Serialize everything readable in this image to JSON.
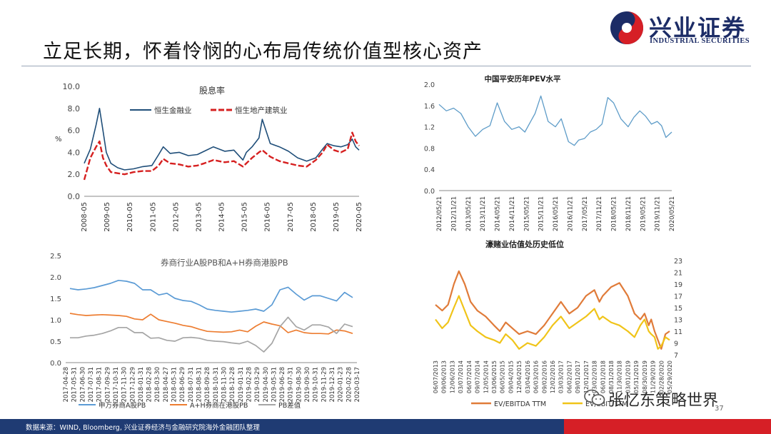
{
  "slide_title": "立足长期，怀着怜悯的心布局传统价值型核心资产",
  "brand": {
    "name_cn": "兴业证券",
    "name_en": "INDUSTRIAL SECURITIES",
    "colors": {
      "navy": "#1c2c66",
      "red": "#d61f26"
    }
  },
  "footer": {
    "source": "数据来源：WIND, Bloomberg, 兴业证券经济与金融研究院海外金融团队整理"
  },
  "watermark": {
    "text": "张忆东策略世界",
    "page": "37"
  },
  "chart_data": [
    {
      "id": "dividend",
      "type": "line",
      "title": "股息率",
      "ylabel": "%",
      "ylim": [
        0,
        10
      ],
      "yticks": [
        "0.0",
        "2.0",
        "4.0",
        "6.0",
        "8.0",
        "10.0"
      ],
      "xticks": [
        "2008-05",
        "2009-05",
        "2010-05",
        "2011-05",
        "2012-05",
        "2013-05",
        "2014-05",
        "2015-05",
        "2016-05",
        "2017-05",
        "2018-05",
        "2019-05",
        "2020-05"
      ],
      "x": [
        2008.33,
        2008.6,
        2008.85,
        2009.0,
        2009.15,
        2009.3,
        2009.5,
        2009.8,
        2010.1,
        2010.5,
        2010.9,
        2011.3,
        2011.6,
        2011.8,
        2012.1,
        2012.5,
        2012.9,
        2013.3,
        2013.6,
        2014.0,
        2014.5,
        2014.9,
        2015.3,
        2015.45,
        2015.7,
        2016.0,
        2016.15,
        2016.5,
        2016.9,
        2017.3,
        2017.7,
        2018.1,
        2018.5,
        2018.8,
        2019.0,
        2019.3,
        2019.6,
        2019.9,
        2020.1,
        2020.25,
        2020.4
      ],
      "series": [
        {
          "name": "恒生金融业",
          "color": "#1f4e79",
          "dash": "solid",
          "values": [
            3.0,
            4.3,
            6.5,
            8.0,
            6.0,
            4.0,
            3.0,
            2.6,
            2.4,
            2.5,
            2.7,
            2.8,
            3.8,
            4.5,
            3.9,
            4.0,
            3.7,
            3.8,
            4.1,
            4.5,
            4.1,
            4.2,
            3.3,
            4.0,
            4.5,
            5.3,
            7.0,
            4.8,
            4.5,
            4.1,
            3.5,
            3.2,
            3.5,
            4.3,
            4.8,
            4.6,
            4.5,
            4.7,
            5.2,
            4.5,
            4.2
          ]
        },
        {
          "name": "恒生地产建筑业",
          "color": "#d62020",
          "dash": "8 3",
          "values": [
            1.5,
            3.5,
            4.5,
            5.0,
            3.5,
            2.8,
            2.2,
            2.1,
            2.0,
            2.2,
            2.3,
            2.3,
            2.8,
            3.4,
            3.0,
            2.9,
            2.7,
            2.8,
            3.0,
            3.3,
            3.1,
            3.2,
            2.7,
            3.0,
            3.5,
            4.0,
            4.2,
            3.6,
            3.2,
            3.0,
            2.8,
            2.7,
            3.3,
            4.0,
            4.7,
            4.2,
            4.0,
            4.3,
            5.8,
            5.0,
            4.6
          ]
        }
      ]
    },
    {
      "id": "pingan",
      "type": "line",
      "title": "中国平安历年PEV水平",
      "ylim": [
        0,
        2
      ],
      "yticks": [
        "0.0",
        "0.4",
        "0.8",
        "1.2",
        "1.6",
        "2.0"
      ],
      "xticks": [
        "2012/05/21",
        "2012/11/21",
        "2013/05/21",
        "2013/11/21",
        "2014/05/21",
        "2014/11/21",
        "2015/05/21",
        "2015/11/21",
        "2016/05/21",
        "2016/11/21",
        "2017/05/21",
        "2017/11/21",
        "2018/05/21",
        "2018/11/21",
        "2019/05/21",
        "2019/11/21",
        "2020/05/21"
      ],
      "x": [
        0,
        0.5,
        1,
        1.5,
        2,
        2.5,
        3,
        3.5,
        4,
        4.5,
        5,
        5.5,
        5.9,
        6.3,
        6.6,
        7,
        7.5,
        8,
        8.4,
        8.9,
        9.3,
        9.6,
        10,
        10.4,
        10.8,
        11.2,
        11.6,
        12,
        12.5,
        13,
        13.4,
        13.8,
        14.2,
        14.6,
        15,
        15.3,
        15.6,
        16
      ],
      "series": [
        {
          "name": "PEV",
          "color": "#5e9cc8",
          "dash": "solid",
          "values": [
            1.62,
            1.5,
            1.55,
            1.45,
            1.2,
            1.02,
            1.15,
            1.22,
            1.65,
            1.3,
            1.15,
            1.2,
            1.1,
            1.3,
            1.45,
            1.78,
            1.3,
            1.2,
            1.35,
            0.92,
            0.85,
            0.95,
            0.98,
            1.1,
            1.15,
            1.25,
            1.75,
            1.65,
            1.35,
            1.2,
            1.38,
            1.5,
            1.4,
            1.25,
            1.3,
            1.22,
            1.0,
            1.1
          ]
        }
      ]
    },
    {
      "id": "broker_pb",
      "type": "line",
      "title": "券商行业A股PB和A+H券商港股PB",
      "ylim": [
        0,
        2.5
      ],
      "yticks": [
        "0.0",
        "0.5",
        "1.0",
        "1.5",
        "2.0",
        "2.5"
      ],
      "xticks": [
        "2017-04-28",
        "2017-05-31",
        "2017-06-30",
        "2017-07-31",
        "2017-08-31",
        "2017-09-29",
        "2017-10-31",
        "2017-11-30",
        "2017-12-29",
        "2018-01-31",
        "2018-02-28",
        "2018-03-30",
        "2018-04-27",
        "2018-05-31",
        "2018-06-29",
        "2018-07-31",
        "2018-08-31",
        "2018-09-28",
        "2018-10-31",
        "2018-11-30",
        "2018-12-28",
        "2019-01-31",
        "2019-02-28",
        "2019-03-29",
        "2019-04-30",
        "2019-05-31",
        "2019-06-28",
        "2019-07-31",
        "2019-08-30",
        "2019-09-30",
        "2019-10-31",
        "2019-11-29",
        "2019-12-31",
        "2020-01-23",
        "2020-02-28",
        "2020-03-17"
      ],
      "series": [
        {
          "name": "申万券商A股PB",
          "color": "#5b9bd5",
          "values": [
            1.73,
            1.7,
            1.72,
            1.75,
            1.8,
            1.85,
            1.92,
            1.9,
            1.85,
            1.7,
            1.7,
            1.58,
            1.62,
            1.5,
            1.45,
            1.43,
            1.35,
            1.25,
            1.22,
            1.2,
            1.18,
            1.2,
            1.22,
            1.25,
            1.2,
            1.35,
            1.7,
            1.76,
            1.6,
            1.46,
            1.56,
            1.56,
            1.5,
            1.44,
            1.64,
            1.52
          ]
        },
        {
          "name": "A+H券商在港股PB",
          "color": "#ed7d31",
          "values": [
            1.15,
            1.12,
            1.1,
            1.11,
            1.12,
            1.11,
            1.1,
            1.08,
            1.02,
            1.0,
            1.13,
            1.0,
            0.96,
            0.92,
            0.87,
            0.84,
            0.78,
            0.73,
            0.72,
            0.71,
            0.72,
            0.76,
            0.72,
            0.85,
            0.95,
            0.9,
            0.86,
            0.7,
            0.76,
            0.7,
            0.68,
            0.68,
            0.67,
            0.76,
            0.74,
            0.68
          ]
        },
        {
          "name": "PB差值",
          "color": "#a5a5a5",
          "values": [
            0.58,
            0.58,
            0.62,
            0.64,
            0.68,
            0.74,
            0.82,
            0.82,
            0.7,
            0.7,
            0.57,
            0.58,
            0.52,
            0.5,
            0.58,
            0.59,
            0.57,
            0.52,
            0.5,
            0.49,
            0.46,
            0.44,
            0.5,
            0.4,
            0.25,
            0.45,
            0.84,
            1.06,
            0.84,
            0.76,
            0.88,
            0.88,
            0.83,
            0.68,
            0.9,
            0.84
          ]
        }
      ]
    },
    {
      "id": "macau",
      "type": "line",
      "title": "濠赌业估值处历史低位",
      "ylim": [
        7,
        23
      ],
      "yticks": [
        "7",
        "9",
        "11",
        "13",
        "15",
        "17",
        "19",
        "21",
        "23"
      ],
      "xticks": [
        "06/07/2013",
        "09/06/2013",
        "12/06/2013",
        "03/07/2014",
        "06/07/2014",
        "09/07/2014",
        "12/05/2014",
        "03/06/2015",
        "06/05/2015",
        "09/04/2015",
        "12/04/2015",
        "03/04/2016",
        "06/03/2016",
        "09/02/2016",
        "12/02/2016",
        "03/03/2017",
        "06/02/2017",
        "09/01/2017",
        "12/01/2017",
        "03/02/2018",
        "06/01/2018",
        "08/31/2018",
        "11/30/2018",
        "03/01/2019",
        "05/31/2019",
        "08/30/2019",
        "11/29/2019",
        "02/28/2020",
        "05/29/2020"
      ],
      "x": [
        0,
        0.8,
        1.5,
        2.2,
        2.8,
        3.5,
        4.2,
        5,
        6,
        7,
        7.7,
        8.4,
        9.2,
        10,
        11,
        12,
        13,
        14,
        15,
        16,
        17,
        18,
        19,
        19.6,
        20,
        21,
        22,
        23,
        23.8,
        24.5,
        25,
        25.5,
        25.8,
        26.2,
        26.6,
        27,
        27.5,
        28
      ],
      "series": [
        {
          "name": "EV/EBITDA TTM",
          "color": "#e07b39",
          "values": [
            15.5,
            14.5,
            15.5,
            19,
            21.2,
            19,
            16,
            14.5,
            13.5,
            12,
            11,
            12.5,
            11.5,
            10.5,
            11,
            10.5,
            12,
            14,
            16,
            14,
            15,
            17,
            18,
            16,
            17,
            18.5,
            19.2,
            17,
            14,
            13,
            14,
            12,
            13,
            11,
            9.5,
            8,
            10.5,
            11
          ]
        },
        {
          "name": "EV/EBIT TTM",
          "color": "#f0c419",
          "values": [
            13,
            11.5,
            12.5,
            15,
            17,
            14.5,
            12,
            11,
            10,
            9.5,
            9,
            10.5,
            9.5,
            8,
            9,
            8.5,
            10,
            12,
            13.5,
            11.5,
            12.5,
            13.5,
            14.8,
            13,
            13.5,
            12.5,
            12,
            11,
            10,
            12,
            13,
            11,
            10.5,
            10,
            8,
            8.5,
            10,
            9.5
          ]
        }
      ]
    }
  ]
}
